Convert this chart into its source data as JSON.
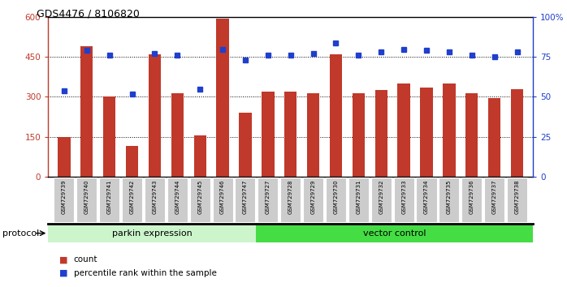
{
  "title": "GDS4476 / 8106820",
  "samples": [
    "GSM729739",
    "GSM729740",
    "GSM729741",
    "GSM729742",
    "GSM729743",
    "GSM729744",
    "GSM729745",
    "GSM729746",
    "GSM729747",
    "GSM729727",
    "GSM729728",
    "GSM729729",
    "GSM729730",
    "GSM729731",
    "GSM729732",
    "GSM729733",
    "GSM729734",
    "GSM729735",
    "GSM729736",
    "GSM729737",
    "GSM729738"
  ],
  "counts": [
    150,
    490,
    300,
    115,
    460,
    315,
    155,
    595,
    240,
    320,
    320,
    315,
    460,
    315,
    325,
    350,
    335,
    350,
    315,
    295,
    330
  ],
  "percentiles": [
    54,
    79,
    76,
    52,
    77,
    76,
    55,
    80,
    73,
    76,
    76,
    77,
    84,
    76,
    78,
    80,
    79,
    78,
    76,
    75,
    78
  ],
  "group1_label": "parkin expression",
  "group2_label": "vector control",
  "group1_count": 9,
  "group2_count": 12,
  "bar_color": "#c0392b",
  "dot_color": "#1f3fcc",
  "group1_bg": "#ccf5cc",
  "group2_bg": "#44dd44",
  "tick_label_bg": "#cccccc",
  "ylim_left": [
    0,
    600
  ],
  "ylim_right": [
    0,
    100
  ],
  "yticks_left": [
    0,
    150,
    300,
    450,
    600
  ],
  "yticks_right": [
    0,
    25,
    50,
    75,
    100
  ],
  "ytick_labels_left": [
    "0",
    "150",
    "300",
    "450",
    "600"
  ],
  "ytick_labels_right": [
    "0",
    "25",
    "50",
    "75",
    "100%"
  ],
  "legend_count_label": "count",
  "legend_pct_label": "percentile rank within the sample",
  "protocol_label": "protocol",
  "figsize": [
    6.98,
    3.54
  ],
  "dpi": 100
}
